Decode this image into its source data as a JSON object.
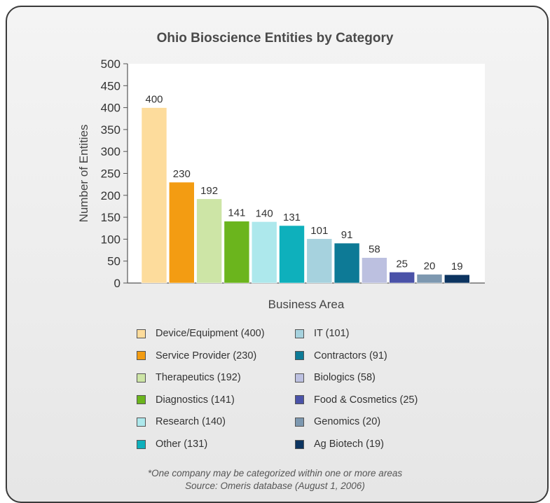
{
  "chart_data": {
    "type": "bar",
    "title": "Ohio Bioscience Entities by Category",
    "xlabel": "Business Area",
    "ylabel": "Number of Entities",
    "ylim": [
      0,
      500
    ],
    "yticks": [
      "0",
      "50",
      "100",
      "150",
      "200",
      "250",
      "300",
      "350",
      "400",
      "450",
      "500"
    ],
    "grid": false,
    "legend_position": "bottom",
    "categories": [
      "Device/Equipment",
      "Service Provider",
      "Therapeutics",
      "Diagnostics",
      "Research",
      "Other",
      "IT",
      "Contractors",
      "Biologics",
      "Food & Cosmetics",
      "Genomics",
      "Ag Biotech"
    ],
    "values": [
      400,
      230,
      192,
      141,
      140,
      131,
      101,
      91,
      58,
      25,
      20,
      19
    ],
    "value_labels": [
      "400",
      "230",
      "192",
      "141",
      "140",
      "131",
      "101",
      "91",
      "58",
      "25",
      "20",
      "19"
    ],
    "colors": [
      "#fddc9c",
      "#f39c12",
      "#cde5a6",
      "#6bb51d",
      "#ade8ec",
      "#0eb0bc",
      "#a6d2de",
      "#0d7a96",
      "#bcc0e0",
      "#4a52a8",
      "#7d98b0",
      "#0c3460"
    ]
  },
  "legend": {
    "items": [
      "Device/Equipment (400)",
      "Service Provider (230)",
      "Therapeutics (192)",
      "Diagnostics (141)",
      "Research (140)",
      "Other (131)",
      "IT (101)",
      "Contractors (91)",
      "Biologics (58)",
      "Food & Cosmetics (25)",
      "Genomics (20)",
      "Ag Biotech (19)"
    ]
  },
  "footnote": {
    "line1": "*One company may be categorized within one or more areas",
    "line2": "Source: Omeris database (August 1, 2006)"
  }
}
